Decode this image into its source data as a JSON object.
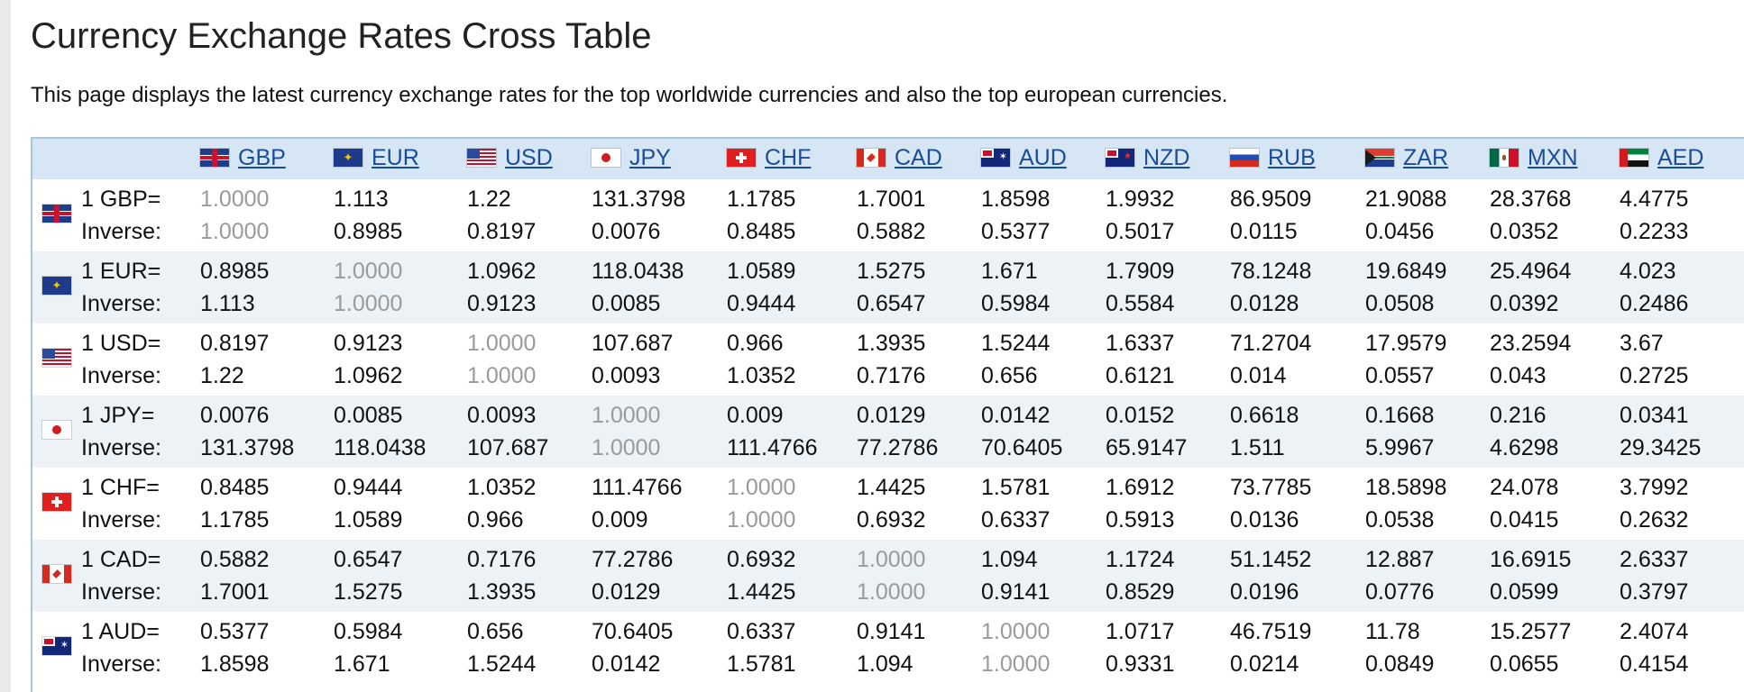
{
  "page": {
    "title": "Currency Exchange Rates Cross Table",
    "description": "This page displays the latest currency exchange rates for the top worldwide currencies and also the top european currencies."
  },
  "table": {
    "columns": [
      {
        "code": "GBP",
        "flag": "gbp-flag-icon"
      },
      {
        "code": "EUR",
        "flag": "eur-flag-icon"
      },
      {
        "code": "USD",
        "flag": "usd-flag-icon"
      },
      {
        "code": "JPY",
        "flag": "jpy-flag-icon"
      },
      {
        "code": "CHF",
        "flag": "chf-flag-icon"
      },
      {
        "code": "CAD",
        "flag": "cad-flag-icon"
      },
      {
        "code": "AUD",
        "flag": "aud-flag-icon"
      },
      {
        "code": "NZD",
        "flag": "nzd-flag-icon"
      },
      {
        "code": "RUB",
        "flag": "rub-flag-icon"
      },
      {
        "code": "ZAR",
        "flag": "zar-flag-icon"
      },
      {
        "code": "MXN",
        "flag": "mxn-flag-icon"
      },
      {
        "code": "AED",
        "flag": "aed-flag-icon"
      }
    ],
    "inverse_label": "Inverse:",
    "rows": [
      {
        "code": "GBP",
        "label": "1 GBP=",
        "flag": "gbp-flag-icon",
        "rates": [
          "1.0000",
          "1.113",
          "1.22",
          "131.3798",
          "1.1785",
          "1.7001",
          "1.8598",
          "1.9932",
          "86.9509",
          "21.9088",
          "28.3768",
          "4.4775"
        ],
        "inverse": [
          "1.0000",
          "0.8985",
          "0.8197",
          "0.0076",
          "0.8485",
          "0.5882",
          "0.5377",
          "0.5017",
          "0.0115",
          "0.0456",
          "0.0352",
          "0.2233"
        ]
      },
      {
        "code": "EUR",
        "label": "1 EUR=",
        "flag": "eur-flag-icon",
        "rates": [
          "0.8985",
          "1.0000",
          "1.0962",
          "118.0438",
          "1.0589",
          "1.5275",
          "1.671",
          "1.7909",
          "78.1248",
          "19.6849",
          "25.4964",
          "4.023"
        ],
        "inverse": [
          "1.113",
          "1.0000",
          "0.9123",
          "0.0085",
          "0.9444",
          "0.6547",
          "0.5984",
          "0.5584",
          "0.0128",
          "0.0508",
          "0.0392",
          "0.2486"
        ]
      },
      {
        "code": "USD",
        "label": "1 USD=",
        "flag": "usd-flag-icon",
        "rates": [
          "0.8197",
          "0.9123",
          "1.0000",
          "107.687",
          "0.966",
          "1.3935",
          "1.5244",
          "1.6337",
          "71.2704",
          "17.9579",
          "23.2594",
          "3.67"
        ],
        "inverse": [
          "1.22",
          "1.0962",
          "1.0000",
          "0.0093",
          "1.0352",
          "0.7176",
          "0.656",
          "0.6121",
          "0.014",
          "0.0557",
          "0.043",
          "0.2725"
        ]
      },
      {
        "code": "JPY",
        "label": "1 JPY=",
        "flag": "jpy-flag-icon",
        "rates": [
          "0.0076",
          "0.0085",
          "0.0093",
          "1.0000",
          "0.009",
          "0.0129",
          "0.0142",
          "0.0152",
          "0.6618",
          "0.1668",
          "0.216",
          "0.0341"
        ],
        "inverse": [
          "131.3798",
          "118.0438",
          "107.687",
          "1.0000",
          "111.4766",
          "77.2786",
          "70.6405",
          "65.9147",
          "1.511",
          "5.9967",
          "4.6298",
          "29.3425"
        ]
      },
      {
        "code": "CHF",
        "label": "1 CHF=",
        "flag": "chf-flag-icon",
        "rates": [
          "0.8485",
          "0.9444",
          "1.0352",
          "111.4766",
          "1.0000",
          "1.4425",
          "1.5781",
          "1.6912",
          "73.7785",
          "18.5898",
          "24.078",
          "3.7992"
        ],
        "inverse": [
          "1.1785",
          "1.0589",
          "0.966",
          "0.009",
          "1.0000",
          "0.6932",
          "0.6337",
          "0.5913",
          "0.0136",
          "0.0538",
          "0.0415",
          "0.2632"
        ]
      },
      {
        "code": "CAD",
        "label": "1 CAD=",
        "flag": "cad-flag-icon",
        "rates": [
          "0.5882",
          "0.6547",
          "0.7176",
          "77.2786",
          "0.6932",
          "1.0000",
          "1.094",
          "1.1724",
          "51.1452",
          "12.887",
          "16.6915",
          "2.6337"
        ],
        "inverse": [
          "1.7001",
          "1.5275",
          "1.3935",
          "0.0129",
          "1.4425",
          "1.0000",
          "0.9141",
          "0.8529",
          "0.0196",
          "0.0776",
          "0.0599",
          "0.3797"
        ]
      },
      {
        "code": "AUD",
        "label": "1 AUD=",
        "flag": "aud-flag-icon",
        "rates": [
          "0.5377",
          "0.5984",
          "0.656",
          "70.6405",
          "0.6337",
          "0.9141",
          "1.0000",
          "1.0717",
          "46.7519",
          "11.78",
          "15.2577",
          "2.4074"
        ],
        "inverse": [
          "1.8598",
          "1.671",
          "1.5244",
          "0.0142",
          "1.5781",
          "1.094",
          "1.0000",
          "0.9331",
          "0.0214",
          "0.0849",
          "0.0655",
          "0.4154"
        ]
      }
    ]
  }
}
